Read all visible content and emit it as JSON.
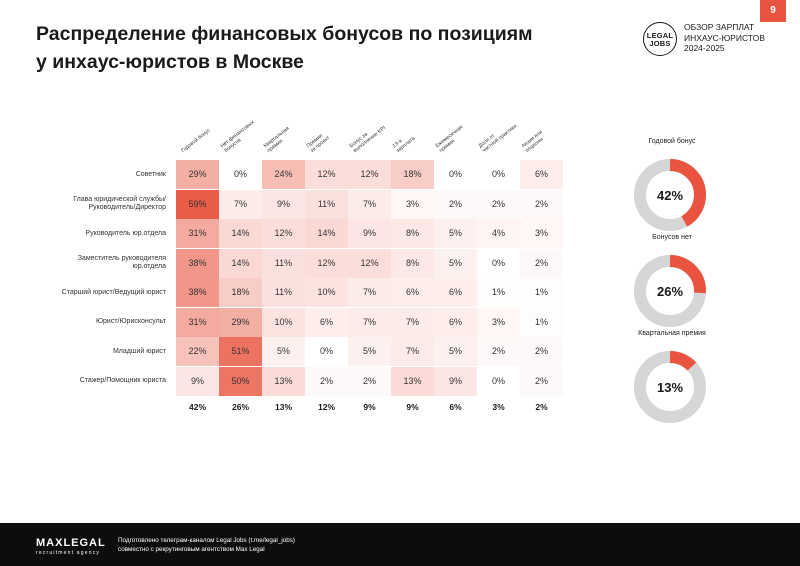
{
  "page_number": "9",
  "title_lines": [
    "Распределение финансовых бонусов по позициям",
    "у инхаус-юристов в Москве"
  ],
  "logo": {
    "line1": "LEGAL",
    "line2": "JOBS"
  },
  "report_label": {
    "line1": "ОБЗОР ЗАРПЛАТ",
    "line2": "ИНХАУС-ЮРИСТОВ",
    "line3": "2024-2025"
  },
  "colors": {
    "accent": "#e8543f",
    "ring_bg": "#d6d6d6"
  },
  "chart_data": [
    {
      "type": "heatmap",
      "columns": [
        [
          "Годовой бонус"
        ],
        [
          "Нет финансовых",
          "бонусов"
        ],
        [
          "Квартальная",
          "премия"
        ],
        [
          "Премия",
          "за проект"
        ],
        [
          "Бонус за",
          "выполнение KPI"
        ],
        [
          "13-я",
          "зарплата"
        ],
        [
          "Ежемесячная",
          "премия"
        ],
        [
          "Доля от",
          "частной практики"
        ],
        [
          "Акции или",
          "опционы"
        ]
      ],
      "rows": [
        {
          "label": [
            "Советник"
          ],
          "values": [
            "29%",
            "0%",
            "24%",
            "12%",
            "12%",
            "18%",
            "0%",
            "0%",
            "6%"
          ]
        },
        {
          "label": [
            "Глава юридической службы/",
            "Руководитель/Директор"
          ],
          "values": [
            "59%",
            "7%",
            "9%",
            "11%",
            "7%",
            "3%",
            "2%",
            "2%",
            "2%"
          ]
        },
        {
          "label": [
            "Руководитель юр.отдела"
          ],
          "values": [
            "31%",
            "14%",
            "12%",
            "14%",
            "9%",
            "8%",
            "5%",
            "4%",
            "3%"
          ]
        },
        {
          "label": [
            "Заместитель руководителя",
            "юр.отдела"
          ],
          "values": [
            "38%",
            "14%",
            "11%",
            "12%",
            "12%",
            "8%",
            "5%",
            "0%",
            "2%"
          ]
        },
        {
          "label": [
            "Старший юрист/Ведущий юрист"
          ],
          "values": [
            "38%",
            "18%",
            "11%",
            "10%",
            "7%",
            "6%",
            "6%",
            "1%",
            "1%"
          ]
        },
        {
          "label": [
            "Юрист/Юрисконсульт"
          ],
          "values": [
            "31%",
            "29%",
            "10%",
            "6%",
            "7%",
            "7%",
            "6%",
            "3%",
            "1%"
          ]
        },
        {
          "label": [
            "Младший юрист"
          ],
          "values": [
            "22%",
            "51%",
            "5%",
            "0%",
            "5%",
            "7%",
            "5%",
            "2%",
            "2%"
          ]
        },
        {
          "label": [
            "Стажер/Помощник юриста"
          ],
          "values": [
            "9%",
            "50%",
            "13%",
            "2%",
            "2%",
            "13%",
            "9%",
            "0%",
            "2%"
          ]
        }
      ],
      "totals": [
        "42%",
        "26%",
        "13%",
        "12%",
        "9%",
        "9%",
        "6%",
        "3%",
        "2%"
      ]
    },
    {
      "type": "pie",
      "title": "Годовой бонус",
      "value": 42,
      "label": "42%"
    },
    {
      "type": "pie",
      "title": "Бонусов нет",
      "value": 26,
      "label": "26%"
    },
    {
      "type": "pie",
      "title": "Квартальная премия",
      "value": 13,
      "label": "13%"
    }
  ],
  "footer": {
    "brand": "MAXLEGAL",
    "brand_sub": "recruitment agency",
    "note_line1": "Подготовлено телеграм-каналом Legal Jobs (t.me/legal_jobs)",
    "note_line2": "совместно с рекрутинговым агентством Max Legal"
  }
}
